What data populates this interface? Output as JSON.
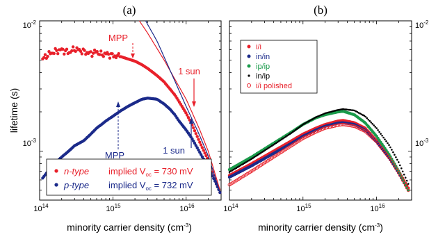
{
  "chart_data": [
    {
      "panel_label": "(a)",
      "type": "scatter",
      "xscale": "log",
      "yscale": "log",
      "xlim": [
        100000000000000.0,
        3e+16
      ],
      "ylim": [
        0.00042,
        0.01
      ],
      "xlabel": "minority carrier density (cm-3)",
      "ylabel": "lifetime (s)",
      "xticks": [
        "10^14",
        "10^15",
        "10^16"
      ],
      "yticks": [
        "10^-2",
        "10^-3"
      ],
      "series": [
        {
          "name": "n-type",
          "marker": "dot",
          "color": "#e8202a",
          "x": [
            110000000000000.0,
            130000000000000.0,
            160000000000000.0,
            200000000000000.0,
            250000000000000.0,
            300000000000000.0,
            400000000000000.0,
            500000000000000.0,
            600000000000000.0,
            700000000000000.0,
            800000000000000.0,
            1000000000000000.0,
            1300000000000000.0,
            1600000000000000.0,
            2000000000000000.0,
            2500000000000000.0,
            3000000000000000.0,
            4000000000000000.0,
            5000000000000000.0,
            6000000000000000.0,
            7000000000000000.0,
            8000000000000000.0,
            1e+16,
            1.2e+16,
            1.5e+16,
            2e+16,
            2.5e+16,
            2.9e+16
          ],
          "y": [
            0.0051,
            0.0055,
            0.0058,
            0.006,
            0.0057,
            0.0061,
            0.0058,
            0.0056,
            0.0058,
            0.0055,
            0.0056,
            0.0054,
            0.0053,
            0.0051,
            0.0049,
            0.0046,
            0.0043,
            0.0038,
            0.0034,
            0.003,
            0.0027,
            0.0024,
            0.00195,
            0.0016,
            0.0012,
            0.00085,
            0.0006,
            0.00048
          ]
        },
        {
          "name": "p-type",
          "marker": "dot",
          "color": "#1b2a8a",
          "x": [
            110000000000000.0,
            130000000000000.0,
            160000000000000.0,
            200000000000000.0,
            250000000000000.0,
            300000000000000.0,
            400000000000000.0,
            500000000000000.0,
            600000000000000.0,
            700000000000000.0,
            800000000000000.0,
            1000000000000000.0,
            1300000000000000.0,
            1600000000000000.0,
            2000000000000000.0,
            2500000000000000.0,
            3000000000000000.0,
            4000000000000000.0,
            5000000000000000.0,
            6000000000000000.0,
            7000000000000000.0,
            8000000000000000.0,
            1e+16,
            1.2e+16,
            1.5e+16,
            2e+16,
            2.5e+16,
            2.9e+16
          ],
          "y": [
            0.00062,
            0.0007,
            0.0008,
            0.0009,
            0.001,
            0.0011,
            0.0012,
            0.00135,
            0.0015,
            0.0016,
            0.0017,
            0.00185,
            0.00205,
            0.0022,
            0.00235,
            0.0025,
            0.00255,
            0.0025,
            0.0023,
            0.0021,
            0.0019,
            0.0017,
            0.00145,
            0.00125,
            0.001,
            0.00075,
            0.00058,
            0.00048
          ]
        },
        {
          "name": "",
          "marker": "line",
          "color": "#e8202a",
          "x": [
            2300000000000000.0,
            3000000000000000.0,
            5000000000000000.0,
            1e+16,
            1.5e+16,
            2e+16,
            2.9e+16
          ],
          "y": [
            0.01,
            0.008,
            0.005,
            0.0025,
            0.0015,
            0.001,
            0.0005
          ]
        },
        {
          "name": "",
          "marker": "line",
          "color": "#1b2a8a",
          "x": [
            2800000000000000.0,
            4000000000000000.0,
            6000000000000000.0,
            1e+16,
            1.5e+16,
            2e+16,
            2.9e+16
          ],
          "y": [
            0.01,
            0.007,
            0.0042,
            0.0022,
            0.00135,
            0.00092,
            0.00048
          ]
        }
      ],
      "annotations": [
        {
          "text": "MPP",
          "color": "#e8202a",
          "at": [
            2300000000000000.0,
            0.005
          ]
        },
        {
          "text": "1 sun",
          "color": "#e8202a",
          "at": [
            1.1e+16,
            0.00185
          ]
        },
        {
          "text": "MPP",
          "color": "#1b2a8a",
          "at": [
            1200000000000000.0,
            0.00215
          ]
        },
        {
          "text": "1 sun",
          "color": "#1b2a8a",
          "at": [
            1.1e+16,
            0.0014
          ]
        }
      ],
      "legend": {
        "placement": "bottom-left",
        "entries": [
          {
            "label": "n-type",
            "color": "#e8202a",
            "extra": "implied V",
            "sub": "oc",
            "value": " = 730 mV"
          },
          {
            "label": "p-type",
            "color": "#1b2a8a",
            "extra": "implied V",
            "sub": "oc",
            "value": " = 732 mV"
          }
        ]
      }
    },
    {
      "panel_label": "(b)",
      "type": "scatter",
      "xscale": "log",
      "yscale": "log",
      "xlim": [
        100000000000000.0,
        3e+16
      ],
      "ylim": [
        0.00042,
        0.01
      ],
      "xlabel": "minority carrier density (cm-3)",
      "xticks": [
        "10^14",
        "10^15",
        "10^16"
      ],
      "yticks": [
        "10^-2",
        "10^-3"
      ],
      "series": [
        {
          "name": "i/i",
          "marker": "dot",
          "color": "#e8202a",
          "x": [
            100000000000000.0,
            200000000000000.0,
            400000000000000.0,
            700000000000000.0,
            1000000000000000.0,
            1500000000000000.0,
            2000000000000000.0,
            3000000000000000.0,
            3500000000000000.0,
            5000000000000000.0,
            7000000000000000.0,
            1e+16,
            1.5e+16,
            2e+16,
            2.7e+16
          ],
          "y": [
            0.00065,
            0.0008,
            0.001,
            0.0012,
            0.00135,
            0.0015,
            0.0016,
            0.0017,
            0.00172,
            0.00165,
            0.0015,
            0.0012,
            0.0009,
            0.0007,
            0.00052
          ]
        },
        {
          "name": "in/in",
          "marker": "dot",
          "color": "#1b2a8a",
          "x": [
            100000000000000.0,
            200000000000000.0,
            400000000000000.0,
            700000000000000.0,
            1000000000000000.0,
            1500000000000000.0,
            2000000000000000.0,
            3000000000000000.0,
            3500000000000000.0,
            5000000000000000.0,
            7000000000000000.0,
            1e+16,
            1.5e+16,
            2e+16,
            2.7e+16
          ],
          "y": [
            0.00063,
            0.00077,
            0.00096,
            0.00115,
            0.0013,
            0.00145,
            0.00155,
            0.00164,
            0.00165,
            0.0016,
            0.00145,
            0.00118,
            0.00088,
            0.00068,
            0.0005
          ]
        },
        {
          "name": "ip/ip",
          "marker": "dot",
          "color": "#1a9a4a",
          "x": [
            100000000000000.0,
            200000000000000.0,
            400000000000000.0,
            700000000000000.0,
            1000000000000000.0,
            1500000000000000.0,
            2000000000000000.0,
            3000000000000000.0,
            3500000000000000.0,
            5000000000000000.0,
            7000000000000000.0,
            1e+16,
            1.5e+16,
            2e+16,
            2.7e+16
          ],
          "y": [
            0.00072,
            0.0009,
            0.00115,
            0.0014,
            0.0016,
            0.0018,
            0.0019,
            0.002,
            0.00202,
            0.0019,
            0.00165,
            0.0013,
            0.00093,
            0.0007,
            0.0005
          ]
        },
        {
          "name": "in/ip",
          "marker": "dot",
          "color": "#000000",
          "x": [
            100000000000000.0,
            200000000000000.0,
            400000000000000.0,
            700000000000000.0,
            1000000000000000.0,
            1500000000000000.0,
            2000000000000000.0,
            3000000000000000.0,
            3500000000000000.0,
            5000000000000000.0,
            7000000000000000.0,
            1e+16,
            1.5e+16,
            2e+16,
            2.7e+16
          ],
          "y": [
            0.00069,
            0.00087,
            0.00112,
            0.00138,
            0.0016,
            0.00182,
            0.00195,
            0.00207,
            0.0021,
            0.00205,
            0.00185,
            0.0015,
            0.0011,
            0.00082,
            0.00056
          ]
        },
        {
          "name": "i/i polished",
          "marker": "open-circle",
          "color": "#e8202a",
          "x": [
            100000000000000.0,
            200000000000000.0,
            400000000000000.0,
            700000000000000.0,
            1000000000000000.0,
            1500000000000000.0,
            2000000000000000.0,
            3000000000000000.0,
            3500000000000000.0,
            5000000000000000.0,
            7000000000000000.0,
            1e+16,
            1.5e+16,
            2e+16,
            2.7e+16
          ],
          "y": [
            0.00055,
            0.0007,
            0.0009,
            0.0011,
            0.00125,
            0.0014,
            0.0015,
            0.00158,
            0.0016,
            0.00155,
            0.00142,
            0.00118,
            0.00088,
            0.00068,
            0.0005
          ]
        }
      ],
      "legend": {
        "placement": "top-left"
      }
    }
  ],
  "labels": {
    "panel_a": "(a)",
    "panel_b": "(b)",
    "ylabel": "lifetime (s)",
    "xlabel_a": "minority carrier density (cm",
    "xlabel_b": "minority carrier density (cm",
    "xlabel_sup": "-3",
    "xlabel_close": ")",
    "tick_base": "10",
    "xt14": "14",
    "xt15": "15",
    "xt16": "16",
    "yt_m2": "-2",
    "yt_m3": "-3",
    "mpp": "MPP",
    "one_sun": "1 sun"
  }
}
